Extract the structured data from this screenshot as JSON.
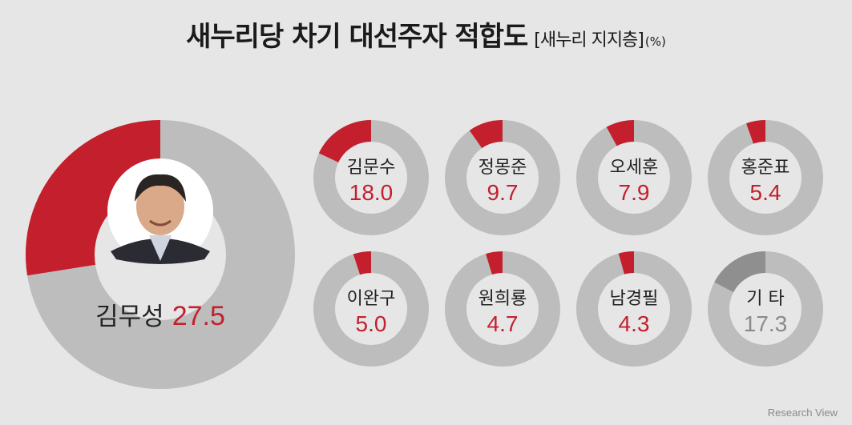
{
  "title": {
    "main": "새누리당 차기 대선주자 적합도",
    "sub": "[새누리 지지층]",
    "unit": "(%)"
  },
  "source": "Research View",
  "colors": {
    "accent": "#c41f2d",
    "track": "#bdbdbd",
    "other": "#8f8f8f",
    "hole": "#e6e6e6",
    "label": "#222222",
    "other_value": "#8a8a8a"
  },
  "chart_data": {
    "type": "pie",
    "unit": "%",
    "series": [
      {
        "name": "김무성",
        "value": 27.5,
        "value_label": "27.5",
        "highlight": true,
        "photo": true
      },
      {
        "name": "김문수",
        "value": 18.0,
        "value_label": "18.0"
      },
      {
        "name": "정몽준",
        "value": 9.7,
        "value_label": "9.7"
      },
      {
        "name": "오세훈",
        "value": 7.9,
        "value_label": "7.9"
      },
      {
        "name": "홍준표",
        "value": 5.4,
        "value_label": "5.4"
      },
      {
        "name": "이완구",
        "value": 5.0,
        "value_label": "5.0"
      },
      {
        "name": "원희룡",
        "value": 4.7,
        "value_label": "4.7"
      },
      {
        "name": "남경필",
        "value": 4.3,
        "value_label": "4.3"
      },
      {
        "name": "기 타",
        "value": 17.3,
        "value_label": "17.3",
        "other": true
      }
    ]
  }
}
